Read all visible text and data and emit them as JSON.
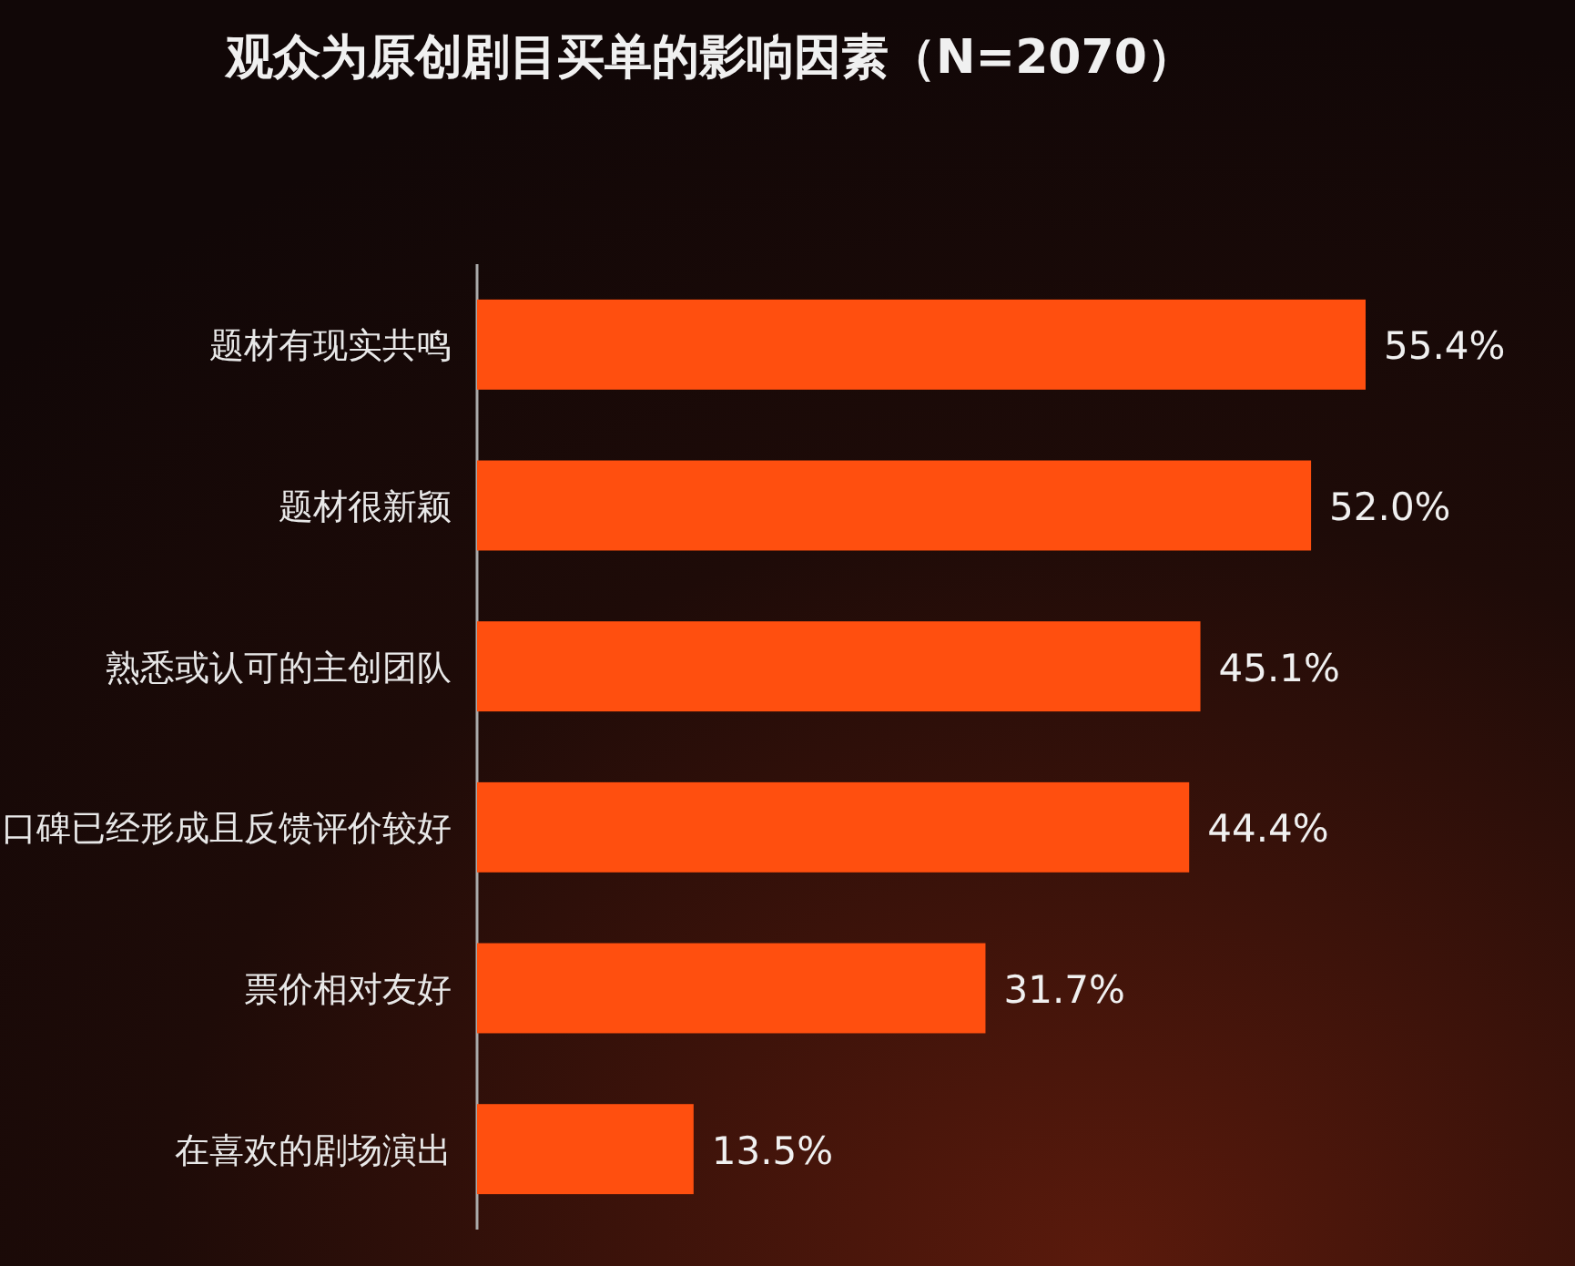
{
  "chart_data": {
    "type": "bar",
    "orientation": "horizontal",
    "title": "观众为原创剧目买单的影响因素（N=2070）",
    "categories": [
      "题材有现实共鸣",
      "题材很新颖",
      "熟悉或认可的主创团队",
      "口碑已经形成且反馈评价较好",
      "票价相对友好",
      "在喜欢的剧场演出"
    ],
    "values": [
      55.4,
      52.0,
      45.1,
      44.4,
      31.7,
      13.5
    ],
    "value_labels": [
      "55.4%",
      "52.0%",
      "45.1%",
      "44.4%",
      "31.7%",
      "13.5%"
    ],
    "color": "#ff4f0f",
    "tick_labels": "y"
  }
}
